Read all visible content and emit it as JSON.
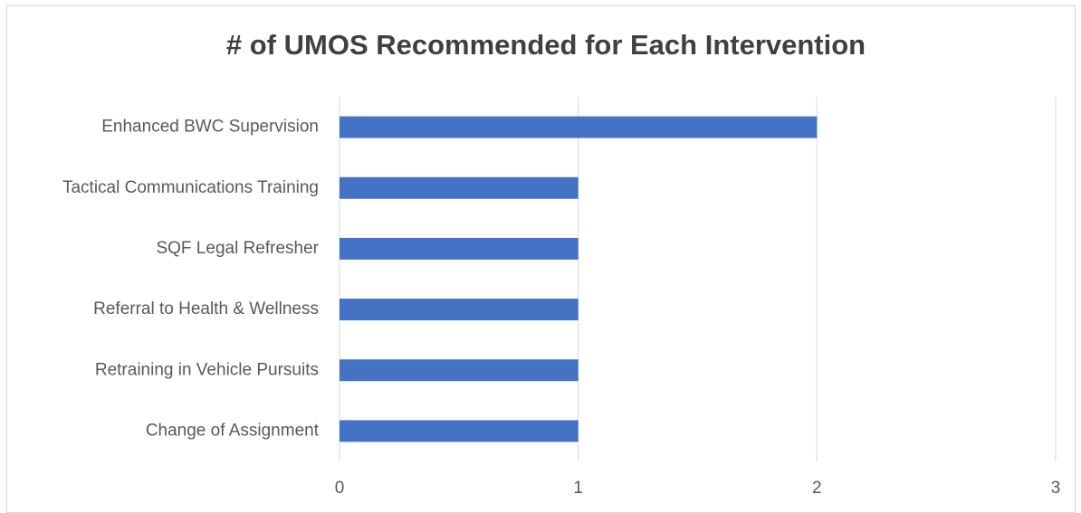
{
  "chart_data": {
    "type": "hbar",
    "title": "# of UMOS Recommended for Each Intervention",
    "categories": [
      "Enhanced BWC Supervision",
      "Tactical Communications Training",
      "SQF Legal Refresher",
      "Referral to Health & Wellness",
      "Retraining in Vehicle Pursuits",
      "Change of Assignment"
    ],
    "values": [
      2,
      1,
      1,
      1,
      1,
      1
    ],
    "color": "#4472c4",
    "xlim": [
      0,
      3
    ],
    "xticks": [
      0,
      1,
      2,
      3
    ],
    "grid": true
  }
}
